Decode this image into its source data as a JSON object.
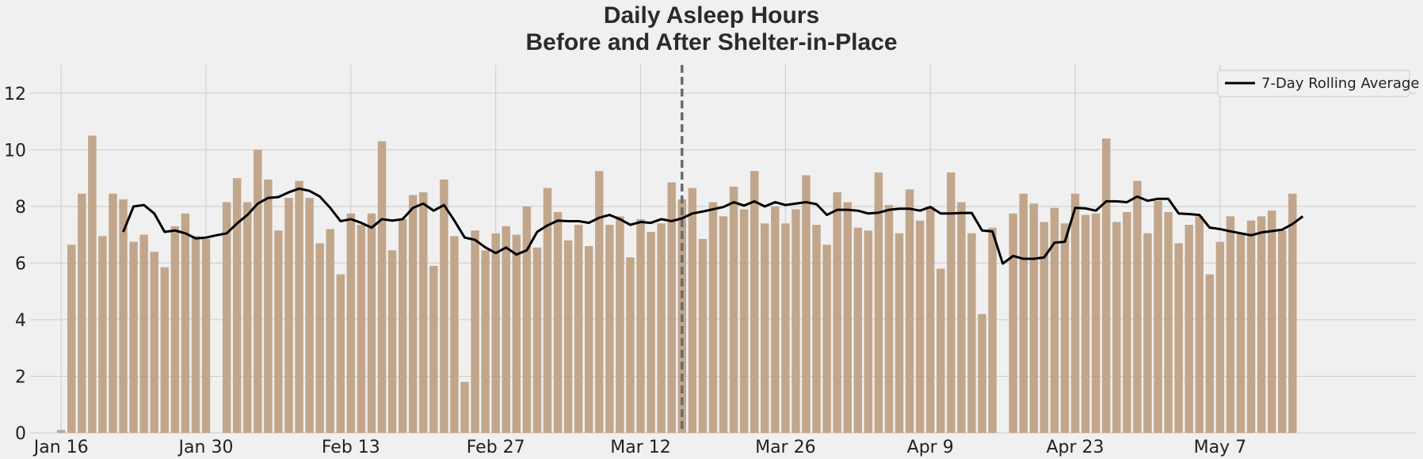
{
  "chart_data": {
    "type": "bar",
    "title_line1": "Daily Asleep Hours",
    "title_line2": "Before and After Shelter-in-Place",
    "xlabel": "",
    "ylabel": "",
    "x_start_date": "2020-01-16",
    "x_end_date": "2020-05-14",
    "xlim": [
      "2020-01-13",
      "2020-05-26"
    ],
    "ylim": [
      0,
      13
    ],
    "yticks": [
      0,
      2,
      4,
      6,
      8,
      10,
      12
    ],
    "xtick_labels": [
      "Jan 16",
      "Jan 30",
      "Feb 13",
      "Feb 27",
      "Mar 12",
      "Mar 26",
      "Apr 9",
      "Apr 23",
      "May 7"
    ],
    "xtick_dates": [
      "2020-01-16",
      "2020-01-30",
      "2020-02-13",
      "2020-02-27",
      "2020-03-12",
      "2020-03-26",
      "2020-04-09",
      "2020-04-23",
      "2020-05-07"
    ],
    "event_line_date": "2020-03-16",
    "grid": true,
    "legend_position": "top-right",
    "bar_color": "#c2a68b",
    "line_color": "#000000",
    "event_line_color": "#6b6b6b",
    "background": "#f0f0f0",
    "series": [
      {
        "kind": "bar",
        "values": [
          0.1,
          6.65,
          8.45,
          10.5,
          6.95,
          8.45,
          8.25,
          6.75,
          7.0,
          6.4,
          5.85,
          7.3,
          7.75,
          6.95,
          6.85,
          0.0,
          8.15,
          9.0,
          8.15,
          10.0,
          8.95,
          7.15,
          8.3,
          8.9,
          8.3,
          6.7,
          7.2,
          5.6,
          7.75,
          7.35,
          7.75,
          10.3,
          6.45,
          7.55,
          8.4,
          8.5,
          5.9,
          8.95,
          6.95,
          1.8,
          7.15,
          6.45,
          7.05,
          7.3,
          7.0,
          8.0,
          6.55,
          8.65,
          7.8,
          6.8,
          7.35,
          6.6,
          9.25,
          7.35,
          7.65,
          6.2,
          7.55,
          7.1,
          7.4,
          8.85,
          8.25,
          8.65,
          6.85,
          8.15,
          7.65,
          8.7,
          7.9,
          9.25,
          7.4,
          8.0,
          7.4,
          7.9,
          9.1,
          7.35,
          6.65,
          8.5,
          8.15,
          7.25,
          7.15,
          9.2,
          8.05,
          7.05,
          8.6,
          7.5,
          8.0,
          5.8,
          9.2,
          8.15,
          7.05,
          4.2,
          7.25,
          0.0,
          7.75,
          8.45,
          8.1,
          7.45,
          7.95,
          7.4,
          8.45,
          7.7,
          7.75,
          10.4,
          7.45,
          7.8,
          8.9,
          7.05,
          8.2,
          7.8,
          6.7,
          7.35,
          7.65,
          5.6,
          6.75,
          7.65,
          7.05,
          7.5,
          7.65,
          7.85,
          7.15,
          8.45
        ]
      },
      {
        "kind": "line",
        "name": "7-Day Rolling Average",
        "start_date": "2020-01-22",
        "values": [
          7.1,
          8.0,
          8.05,
          7.75,
          7.1,
          7.15,
          7.05,
          6.87,
          6.9,
          6.98,
          7.05,
          7.4,
          7.7,
          8.1,
          8.3,
          8.33,
          8.5,
          8.63,
          8.55,
          8.35,
          7.95,
          7.48,
          7.55,
          7.42,
          7.25,
          7.55,
          7.5,
          7.55,
          7.95,
          8.1,
          7.85,
          8.05,
          7.5,
          6.9,
          6.82,
          6.55,
          6.35,
          6.55,
          6.3,
          6.45,
          7.1,
          7.33,
          7.5,
          7.48,
          7.48,
          7.42,
          7.6,
          7.7,
          7.55,
          7.35,
          7.45,
          7.42,
          7.55,
          7.48,
          7.58,
          7.75,
          7.82,
          7.9,
          7.98,
          8.15,
          8.03,
          8.18,
          8.0,
          8.15,
          8.05,
          8.1,
          8.15,
          8.08,
          7.7,
          7.88,
          7.88,
          7.85,
          7.75,
          7.78,
          7.88,
          7.92,
          7.92,
          7.85,
          7.98,
          7.75,
          7.75,
          7.77,
          7.77,
          7.15,
          7.12,
          5.98,
          6.25,
          6.15,
          6.15,
          6.2,
          6.72,
          6.75,
          7.95,
          7.93,
          7.85,
          8.18,
          8.18,
          8.15,
          8.35,
          8.2,
          8.27,
          8.27,
          7.75,
          7.73,
          7.7,
          7.25,
          7.2,
          7.12,
          7.05,
          6.98,
          7.08,
          7.13,
          7.18,
          7.38,
          7.65
        ]
      }
    ]
  }
}
